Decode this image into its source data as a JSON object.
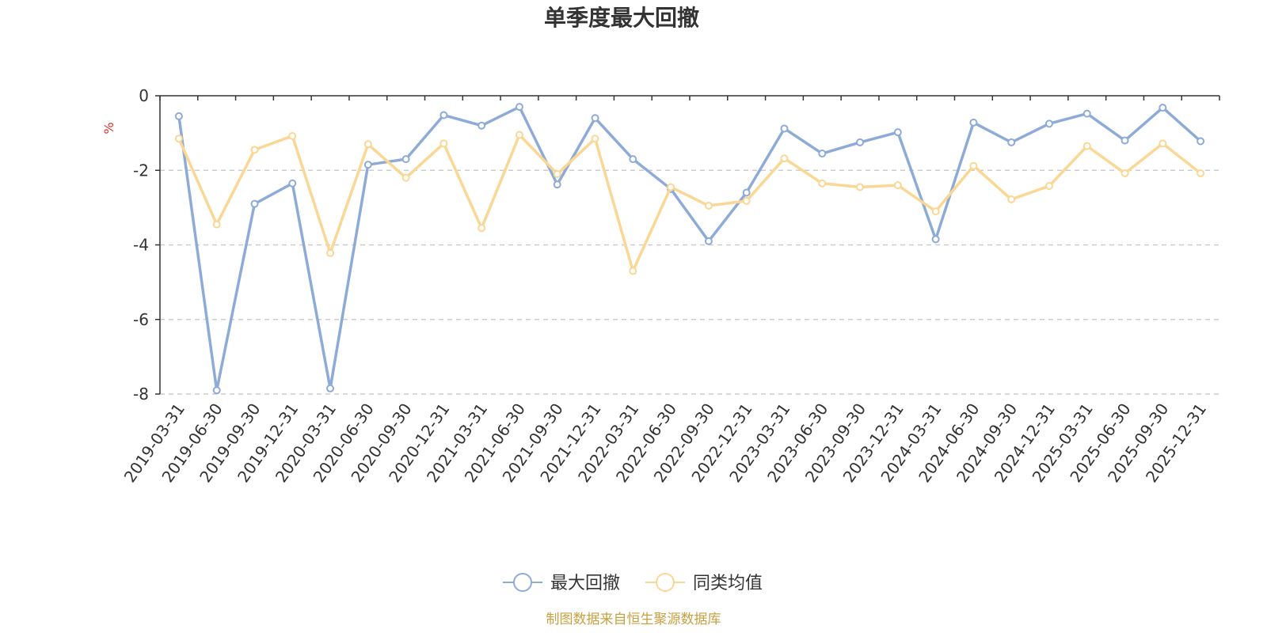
{
  "chart_data": {
    "type": "line",
    "title": "单季度最大回撤",
    "ylabel": "%",
    "ylim": [
      -8,
      0
    ],
    "yticks": [
      0,
      -2,
      -4,
      -6,
      -8
    ],
    "grid": true,
    "legend_position": "bottom",
    "categories": [
      "2019-03-31",
      "2019-06-30",
      "2019-09-30",
      "2019-12-31",
      "2020-03-31",
      "2020-06-30",
      "2020-09-30",
      "2020-12-31",
      "2021-03-31",
      "2021-06-30",
      "2021-09-30",
      "2021-12-31",
      "2022-03-31",
      "2022-06-30",
      "2022-09-30",
      "2022-12-31",
      "2023-03-31",
      "2023-06-30",
      "2023-09-30",
      "2023-12-31",
      "2024-03-31",
      "2024-06-30",
      "2024-09-30",
      "2024-12-31",
      "2025-03-31",
      "2025-06-30",
      "2025-09-30",
      "2025-12-31"
    ],
    "series": [
      {
        "name": "最大回撤",
        "color": "#8eabd8",
        "values": [
          -0.55,
          -7.9,
          -2.9,
          -2.35,
          -7.85,
          -1.85,
          -1.7,
          -0.52,
          -0.8,
          -0.3,
          -2.38,
          -0.6,
          -1.7,
          -2.5,
          -3.9,
          -2.6,
          -0.88,
          -1.55,
          -1.25,
          -0.98,
          -3.85,
          -0.72,
          -1.25,
          -0.75,
          -0.48,
          -1.2,
          -0.32,
          -1.22
        ]
      },
      {
        "name": "同类均值",
        "color": "#fad794",
        "values": [
          -1.15,
          -3.45,
          -1.45,
          -1.08,
          -4.22,
          -1.3,
          -2.2,
          -1.28,
          -3.55,
          -1.05,
          -2.1,
          -1.15,
          -4.7,
          -2.45,
          -2.95,
          -2.82,
          -1.68,
          -2.35,
          -2.45,
          -2.4,
          -3.1,
          -1.88,
          -2.78,
          -2.42,
          -1.35,
          -2.08,
          -1.28,
          -2.08
        ]
      }
    ]
  },
  "source_text": "制图数据来自恒生聚源数据库",
  "colors": {
    "axis": "#333333",
    "grid": "#cccccc"
  }
}
